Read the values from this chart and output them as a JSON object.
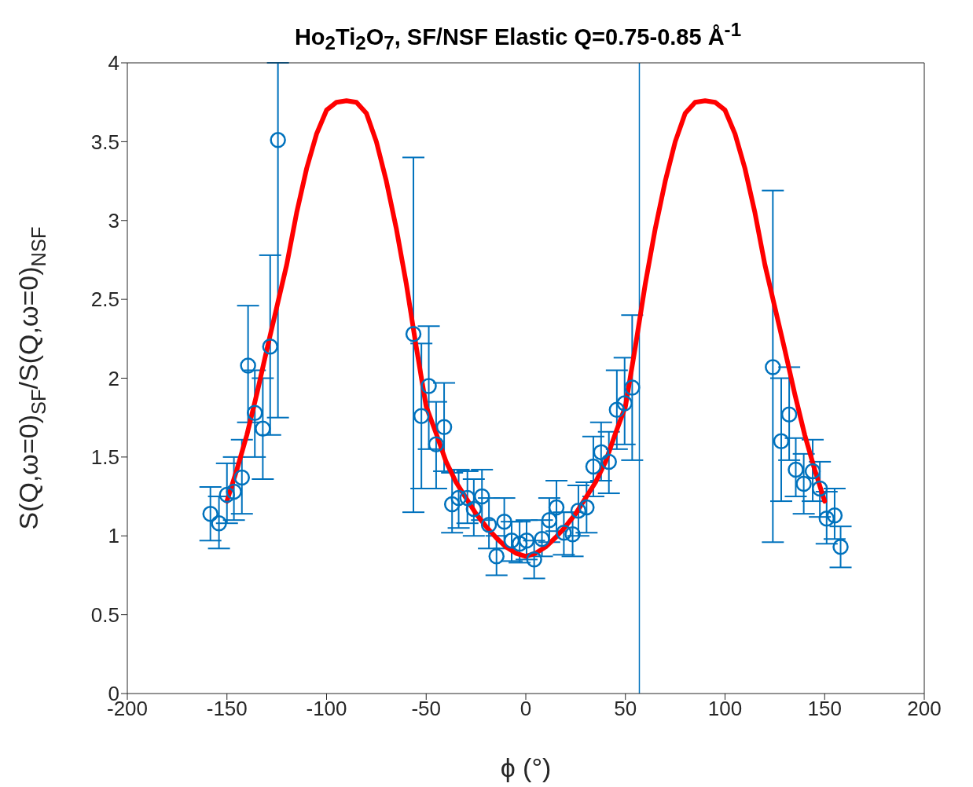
{
  "chart_data": {
    "type": "scatter",
    "title": "Ho$_{2}$Ti$_{2}$O$_{7}$, SF/NSF Elastic Q=0.75-0.85 Å$^{-1}$",
    "xlabel": "ϕ (°)",
    "ylabel": "S(Q,ω=0)$_{SF}$/S(Q,ω=0)$_{NSF}$",
    "xlim": [
      -200,
      200
    ],
    "xticks": [
      -200,
      -150,
      -100,
      -50,
      0,
      50,
      100,
      150,
      200
    ],
    "ylim": [
      0,
      4
    ],
    "yticks": [
      0,
      0.5,
      1,
      1.5,
      2,
      2.5,
      3,
      3.5,
      4
    ],
    "grid": false,
    "legend": false,
    "marker": "circle",
    "series": [
      {
        "color": "#0072bd",
        "x": [
          -158.3,
          -154,
          -150,
          -146.5,
          -142.5,
          -139.4,
          -136,
          -132,
          -128.3,
          -124.4,
          -56.4,
          -52.4,
          -48.7,
          -45,
          -41,
          -37,
          -33.7,
          -29.3,
          -26.1,
          -22,
          -18.5,
          -14.7,
          -10.8,
          -7.1,
          -3.1,
          0.4,
          4.2,
          8.1,
          11.8,
          15.4,
          19.1,
          23.5,
          26.4,
          30.5,
          33.9,
          37.8,
          41.7,
          45.7,
          49.6,
          53.4,
          124,
          128.2,
          132.2,
          135.5,
          139.5,
          144,
          147.6,
          151,
          155,
          158
        ],
        "values": [
          1.14,
          1.08,
          1.26,
          1.28,
          1.37,
          2.08,
          1.78,
          1.68,
          2.2,
          3.51,
          2.28,
          1.76,
          1.95,
          1.58,
          1.69,
          1.2,
          1.24,
          1.24,
          1.17,
          1.25,
          1.07,
          0.87,
          1.09,
          0.97,
          0.95,
          0.97,
          0.85,
          0.98,
          1.1,
          1.18,
          1.02,
          1.01,
          1.16,
          1.18,
          1.44,
          1.53,
          1.47,
          1.8,
          1.84,
          1.94,
          2.07,
          1.6,
          1.77,
          1.42,
          1.33,
          1.41,
          1.3,
          1.11,
          1.13,
          0.93
        ],
        "errors": [
          [
            0.97,
            1.31
          ],
          [
            0.92,
            1.25
          ],
          [
            1.08,
            1.46
          ],
          [
            1.1,
            1.5
          ],
          [
            1.14,
            1.61
          ],
          [
            1.72,
            2.46
          ],
          [
            1.5,
            2.05
          ],
          [
            1.36,
            2.0
          ],
          [
            1.64,
            2.78
          ],
          [
            1.75,
            4
          ],
          [
            1.15,
            3.4
          ],
          [
            1.3,
            2.22
          ],
          [
            1.55,
            2.33
          ],
          [
            1.3,
            1.85
          ],
          [
            1.41,
            1.97
          ],
          [
            1.02,
            1.4
          ],
          [
            1.05,
            1.42
          ],
          [
            1.08,
            1.41
          ],
          [
            1.0,
            1.36
          ],
          [
            1.1,
            1.42
          ],
          [
            0.92,
            1.24
          ],
          [
            0.75,
            1.0
          ],
          [
            0.92,
            1.24
          ],
          [
            0.84,
            1.09
          ],
          [
            0.83,
            1.09
          ],
          [
            0.85,
            1.1
          ],
          [
            0.73,
            0.97
          ],
          [
            0.87,
            1.1
          ],
          [
            0.96,
            1.24
          ],
          [
            1.03,
            1.35
          ],
          [
            0.88,
            1.15
          ],
          [
            0.87,
            1.15
          ],
          [
            1.0,
            1.32
          ],
          [
            1.02,
            1.34
          ],
          [
            1.25,
            1.63
          ],
          [
            1.35,
            1.72
          ],
          [
            1.27,
            1.66
          ],
          [
            1.55,
            2.05
          ],
          [
            1.58,
            2.13
          ],
          [
            1.48,
            2.4
          ],
          [
            0.96,
            3.19
          ],
          [
            1.22,
            2.0
          ],
          [
            1.48,
            2.07
          ],
          [
            1.25,
            1.62
          ],
          [
            1.14,
            1.52
          ],
          [
            1.22,
            1.61
          ],
          [
            1.12,
            1.47
          ],
          [
            0.95,
            1.28
          ],
          [
            0.98,
            1.3
          ],
          [
            0.8,
            1.06
          ]
        ]
      },
      {
        "type": "line",
        "color": "#ff0000",
        "line_style": "solid",
        "marker": "none",
        "x": [
          -150,
          -145,
          -140,
          -135,
          -130,
          -125,
          -120,
          -115,
          -110,
          -105,
          -100,
          -95,
          -90,
          -85,
          -80,
          -75,
          -70,
          -65,
          -60,
          -55,
          -50,
          -45,
          -40,
          -35,
          -30,
          -25,
          -20,
          -15,
          -10,
          -5,
          0,
          5,
          10,
          15,
          20,
          25,
          30,
          35,
          40,
          45,
          50,
          55,
          60,
          65,
          70,
          75,
          80,
          85,
          90,
          95,
          100,
          105,
          110,
          115,
          120,
          125,
          130,
          135,
          140,
          145,
          150
        ],
        "values": [
          1.22,
          1.42,
          1.64,
          1.9,
          2.18,
          2.45,
          2.72,
          3.05,
          3.33,
          3.55,
          3.7,
          3.75,
          3.76,
          3.75,
          3.68,
          3.5,
          3.25,
          2.95,
          2.6,
          2.2,
          1.82,
          1.65,
          1.47,
          1.34,
          1.24,
          1.14,
          1.06,
          0.99,
          0.93,
          0.89,
          0.87,
          0.89,
          0.93,
          0.99,
          1.06,
          1.14,
          1.24,
          1.34,
          1.47,
          1.65,
          1.82,
          2.2,
          2.6,
          2.95,
          3.25,
          3.5,
          3.68,
          3.75,
          3.76,
          3.75,
          3.7,
          3.55,
          3.33,
          3.05,
          2.72,
          2.45,
          2.18,
          1.9,
          1.64,
          1.42,
          1.22
        ]
      }
    ],
    "ref_lines": [
      {
        "axis": "x",
        "value": 57,
        "color": "#0072bd"
      }
    ]
  }
}
